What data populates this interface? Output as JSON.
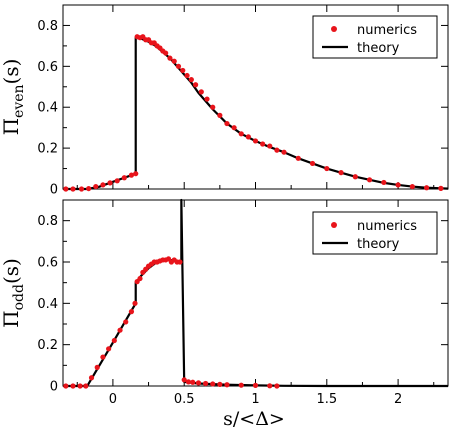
{
  "chart_data": [
    {
      "type": "scatter",
      "ylabel_main": "Π",
      "ylabel_sub": "even",
      "ylabel_tail": "(s)",
      "xlim": [
        -0.35,
        2.35
      ],
      "ylim": [
        0,
        0.9
      ],
      "xticks": [
        0,
        0.5,
        1,
        1.5,
        2
      ],
      "xtick_labels": [
        "",
        "",
        "",
        "",
        ""
      ],
      "yticks": [
        0,
        0.2,
        0.4,
        0.6,
        0.8
      ],
      "ytick_labels": [
        "0",
        "0.2",
        "0.4",
        "0.6",
        "0.8"
      ],
      "legend_position": "top-right",
      "legend": [
        "numerics",
        "theory"
      ],
      "series": [
        {
          "name": "theory",
          "x": [
            -0.35,
            -0.25,
            -0.18,
            -0.1,
            0,
            0.08,
            0.16,
            0.16,
            0.2,
            0.25,
            0.3,
            0.35,
            0.4,
            0.45,
            0.5,
            0.55,
            0.6,
            0.7,
            0.8,
            0.9,
            1.0,
            1.1,
            1.2,
            1.3,
            1.4,
            1.5,
            1.6,
            1.7,
            1.8,
            1.9,
            2.0,
            2.1,
            2.2,
            2.35
          ],
          "y": [
            0,
            0,
            0,
            0.01,
            0.035,
            0.055,
            0.075,
            0.74,
            0.735,
            0.72,
            0.7,
            0.67,
            0.64,
            0.6,
            0.56,
            0.52,
            0.47,
            0.39,
            0.32,
            0.27,
            0.235,
            0.205,
            0.18,
            0.15,
            0.125,
            0.1,
            0.08,
            0.06,
            0.045,
            0.03,
            0.02,
            0.012,
            0.006,
            0.002
          ]
        },
        {
          "name": "numerics",
          "x": [
            -0.33,
            -0.28,
            -0.22,
            -0.17,
            -0.12,
            -0.07,
            -0.02,
            0.03,
            0.08,
            0.13,
            0.16,
            0.17,
            0.19,
            0.21,
            0.23,
            0.25,
            0.27,
            0.29,
            0.31,
            0.33,
            0.35,
            0.37,
            0.4,
            0.43,
            0.46,
            0.49,
            0.52,
            0.55,
            0.58,
            0.62,
            0.66,
            0.7,
            0.75,
            0.8,
            0.85,
            0.9,
            0.95,
            1.0,
            1.05,
            1.1,
            1.15,
            1.2,
            1.3,
            1.4,
            1.5,
            1.6,
            1.7,
            1.8,
            1.9,
            2.0,
            2.1,
            2.2,
            2.3
          ],
          "y": [
            0.0,
            0.0,
            0.0,
            0.002,
            0.012,
            0.02,
            0.03,
            0.04,
            0.055,
            0.068,
            0.075,
            0.745,
            0.74,
            0.745,
            0.73,
            0.73,
            0.715,
            0.715,
            0.7,
            0.69,
            0.675,
            0.665,
            0.64,
            0.625,
            0.6,
            0.58,
            0.555,
            0.535,
            0.51,
            0.475,
            0.44,
            0.4,
            0.36,
            0.32,
            0.3,
            0.27,
            0.255,
            0.235,
            0.22,
            0.21,
            0.19,
            0.18,
            0.15,
            0.125,
            0.1,
            0.08,
            0.06,
            0.045,
            0.032,
            0.02,
            0.012,
            0.006,
            0.003
          ]
        }
      ]
    },
    {
      "type": "scatter",
      "ylabel_main": "Π",
      "ylabel_sub": "odd",
      "ylabel_tail": "(s)",
      "xlabel": "s/<Δ>",
      "xlim": [
        -0.35,
        2.35
      ],
      "ylim": [
        0,
        0.9
      ],
      "xticks": [
        0,
        0.5,
        1,
        1.5,
        2
      ],
      "xtick_labels": [
        "0",
        "0.5",
        "1",
        "1.5",
        "2"
      ],
      "yticks": [
        0,
        0.2,
        0.4,
        0.6,
        0.8
      ],
      "ytick_labels": [
        "0",
        "0.2",
        "0.4",
        "0.6",
        "0.8"
      ],
      "legend_position": "top-right",
      "legend": [
        "numerics",
        "theory"
      ],
      "series": [
        {
          "name": "theory",
          "x": [
            -0.35,
            -0.18,
            0,
            0.16,
            0.16,
            0.2,
            0.25,
            0.3,
            0.35,
            0.4,
            0.45,
            0.48,
            0.48,
            0.5,
            0.6,
            0.8,
            1.0,
            1.2,
            1.5,
            2.35
          ],
          "y": [
            0,
            0,
            0.21,
            0.4,
            0.5,
            0.535,
            0.57,
            0.595,
            0.605,
            0.61,
            0.605,
            0.6,
            0.9,
            0.02,
            0.012,
            0.006,
            0.003,
            0.001,
            0,
            0
          ]
        },
        {
          "name": "numerics",
          "x": [
            -0.33,
            -0.28,
            -0.23,
            -0.19,
            -0.15,
            -0.11,
            -0.07,
            -0.03,
            0.01,
            0.05,
            0.09,
            0.13,
            0.155,
            0.17,
            0.19,
            0.21,
            0.23,
            0.25,
            0.27,
            0.29,
            0.31,
            0.33,
            0.35,
            0.37,
            0.39,
            0.41,
            0.43,
            0.45,
            0.47,
            0.5,
            0.53,
            0.56,
            0.6,
            0.65,
            0.7,
            0.75,
            0.8,
            0.9,
            1.0,
            1.1,
            1.15
          ],
          "y": [
            0.0,
            0.0,
            0.0,
            0.0,
            0.04,
            0.09,
            0.14,
            0.18,
            0.22,
            0.27,
            0.31,
            0.36,
            0.4,
            0.505,
            0.52,
            0.55,
            0.565,
            0.58,
            0.59,
            0.6,
            0.6,
            0.605,
            0.61,
            0.61,
            0.615,
            0.6,
            0.61,
            0.6,
            0.6,
            0.03,
            0.02,
            0.018,
            0.015,
            0.012,
            0.01,
            0.008,
            0.006,
            0.004,
            0.003,
            0.001,
            0.0
          ]
        }
      ]
    }
  ]
}
